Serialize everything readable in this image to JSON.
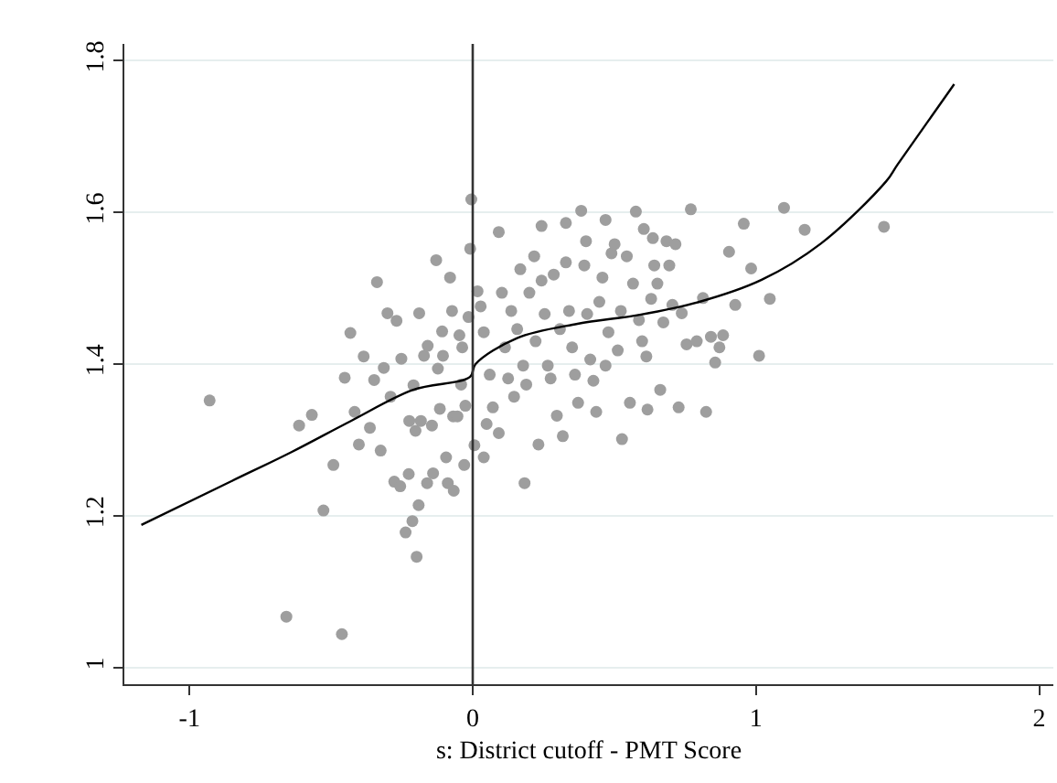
{
  "chart_data": {
    "type": "scatter",
    "xlabel": "s: District cutoff - PMT Score",
    "xlim": [
      -1.23,
      2.05
    ],
    "ylim": [
      0.978,
      1.822
    ],
    "xticks": [
      -1,
      0,
      1,
      2
    ],
    "yticks": [
      1,
      1.2,
      1.4,
      1.6,
      1.8
    ],
    "grid": "y",
    "ref_lines": [
      {
        "axis": "x",
        "value": 0,
        "color": "#333333"
      }
    ],
    "series": [
      {
        "marker": "circle",
        "color": "#9e9e9e",
        "x": [
          -0.929,
          -0.613,
          -0.568,
          -0.527,
          -0.492,
          -0.452,
          -0.432,
          -0.417,
          -0.402,
          -0.385,
          -0.363,
          -0.348,
          -0.338,
          -0.325,
          -0.314,
          -0.301,
          -0.29,
          -0.277,
          -0.269,
          -0.256,
          -0.252,
          -0.237,
          -0.226,
          -0.224,
          -0.213,
          -0.209,
          -0.202,
          -0.198,
          -0.191,
          -0.189,
          -0.183,
          -0.172,
          -0.161,
          -0.159,
          -0.144,
          -0.14,
          -0.129,
          -0.123,
          -0.116,
          -0.108,
          -0.105,
          -0.094,
          -0.088,
          -0.08,
          -0.073,
          -0.069,
          -0.067,
          -0.054,
          -0.047,
          -0.041,
          -0.037,
          -0.03,
          -0.026,
          -0.015,
          -0.005,
          -0.009,
          0.017,
          0.028,
          0.039,
          0.006,
          0.039,
          0.049,
          0.06,
          0.071,
          0.092,
          0.092,
          0.103,
          0.114,
          0.125,
          0.136,
          0.146,
          0.157,
          0.168,
          0.178,
          0.183,
          0.189,
          0.2,
          0.217,
          0.222,
          0.232,
          0.243,
          0.243,
          0.254,
          0.265,
          0.275,
          0.286,
          0.297,
          0.308,
          0.318,
          0.329,
          0.329,
          0.34,
          0.351,
          0.361,
          0.372,
          0.383,
          0.394,
          0.4,
          0.404,
          0.415,
          0.426,
          0.436,
          0.447,
          0.458,
          0.469,
          0.469,
          0.479,
          0.49,
          0.501,
          0.512,
          0.523,
          0.527,
          0.544,
          0.555,
          0.566,
          0.576,
          0.587,
          0.598,
          0.604,
          0.613,
          0.617,
          0.63,
          0.636,
          0.641,
          0.652,
          0.662,
          0.673,
          0.684,
          0.694,
          0.705,
          0.716,
          0.727,
          0.738,
          0.755,
          0.77,
          0.791,
          0.813,
          0.824,
          0.841,
          0.856,
          0.871,
          0.884,
          0.905,
          0.927,
          0.957,
          0.983,
          1.011,
          1.049,
          1.099,
          1.172,
          1.452,
          -0.658,
          -0.462
        ],
        "values": [
          1.352,
          1.319,
          1.333,
          1.207,
          1.267,
          1.382,
          1.441,
          1.337,
          1.294,
          1.41,
          1.316,
          1.379,
          1.508,
          1.286,
          1.395,
          1.467,
          1.357,
          1.245,
          1.457,
          1.239,
          1.407,
          1.178,
          1.255,
          1.325,
          1.193,
          1.372,
          1.312,
          1.146,
          1.214,
          1.467,
          1.325,
          1.411,
          1.243,
          1.424,
          1.319,
          1.256,
          1.537,
          1.394,
          1.341,
          1.443,
          1.411,
          1.277,
          1.243,
          1.514,
          1.47,
          1.331,
          1.233,
          1.331,
          1.438,
          1.373,
          1.422,
          1.267,
          1.345,
          1.462,
          1.617,
          1.552,
          1.496,
          1.476,
          1.442,
          1.293,
          1.277,
          1.321,
          1.386,
          1.343,
          1.574,
          1.309,
          1.494,
          1.422,
          1.381,
          1.47,
          1.357,
          1.446,
          1.525,
          1.398,
          1.243,
          1.373,
          1.494,
          1.542,
          1.43,
          1.294,
          1.582,
          1.51,
          1.466,
          1.398,
          1.381,
          1.518,
          1.332,
          1.446,
          1.305,
          1.586,
          1.534,
          1.47,
          1.422,
          1.386,
          1.349,
          1.602,
          1.53,
          1.562,
          1.466,
          1.406,
          1.378,
          1.337,
          1.482,
          1.514,
          1.59,
          1.398,
          1.442,
          1.546,
          1.558,
          1.418,
          1.47,
          1.301,
          1.542,
          1.349,
          1.506,
          1.601,
          1.458,
          1.43,
          1.578,
          1.41,
          1.34,
          1.486,
          1.566,
          1.53,
          1.506,
          1.366,
          1.455,
          1.562,
          1.53,
          1.478,
          1.558,
          1.343,
          1.467,
          1.426,
          1.604,
          1.43,
          1.487,
          1.337,
          1.436,
          1.402,
          1.422,
          1.438,
          1.548,
          1.478,
          1.585,
          1.526,
          1.411,
          1.486,
          1.606,
          1.577,
          1.581,
          1.067,
          1.044
        ]
      },
      {
        "type": "line",
        "marker": "none",
        "line_style": "solid",
        "color": "#000000",
        "x": [
          -1.17,
          -0.85,
          -0.64,
          -0.43,
          -0.21,
          -0.01,
          0.01,
          0.155,
          0.37,
          0.59,
          0.8,
          1.02,
          1.23,
          1.46,
          1.5,
          1.7
        ],
        "values": [
          1.188,
          1.246,
          1.284,
          1.325,
          1.366,
          1.383,
          1.4,
          1.434,
          1.453,
          1.465,
          1.482,
          1.511,
          1.559,
          1.641,
          1.663,
          1.769
        ]
      }
    ]
  }
}
